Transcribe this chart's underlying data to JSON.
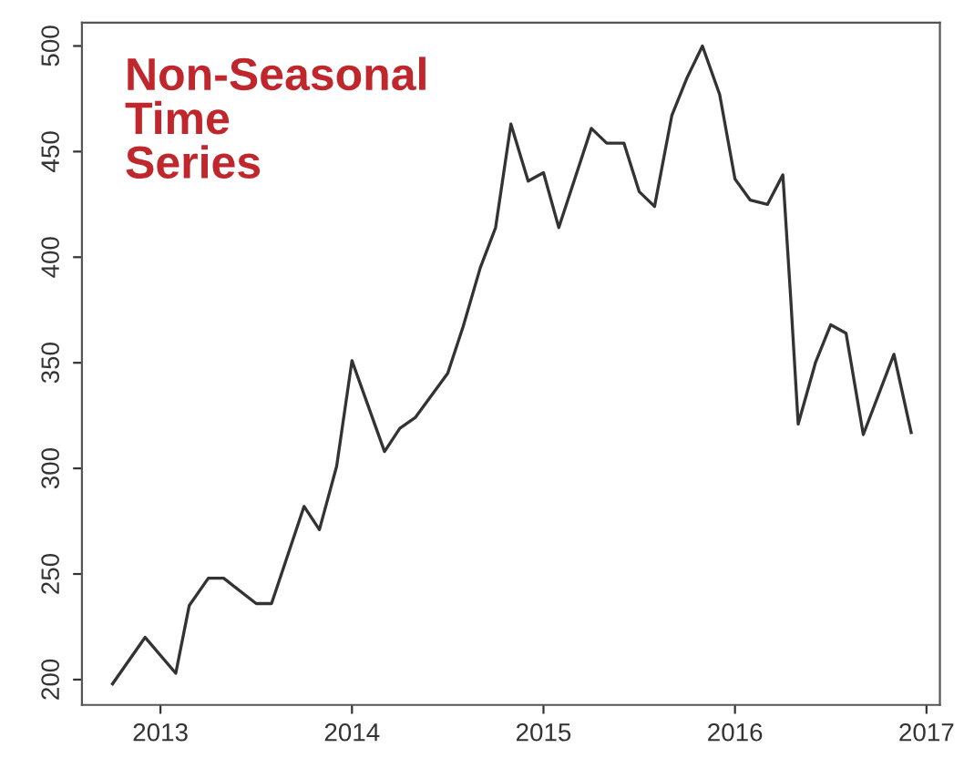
{
  "chart_data": {
    "type": "line",
    "title": "Non-Seasonal\nTime\nSeries",
    "x": [
      2012.75,
      2012.92,
      2013.08,
      2013.15,
      2013.25,
      2013.33,
      2013.5,
      2013.58,
      2013.75,
      2013.83,
      2013.92,
      2014.0,
      2014.17,
      2014.25,
      2014.33,
      2014.5,
      2014.58,
      2014.67,
      2014.75,
      2014.83,
      2014.92,
      2015.0,
      2015.08,
      2015.25,
      2015.33,
      2015.42,
      2015.5,
      2015.58,
      2015.67,
      2015.75,
      2015.83,
      2015.92,
      2016.0,
      2016.08,
      2016.17,
      2016.25,
      2016.29,
      2016.33,
      2016.42,
      2016.5,
      2016.58,
      2016.67,
      2016.83,
      2016.92
    ],
    "series": [
      {
        "color": "#333333",
        "values": [
          198,
          220,
          203,
          235,
          248,
          248,
          236,
          236,
          282,
          271,
          301,
          351,
          308,
          319,
          324,
          345,
          367,
          395,
          414,
          463,
          436,
          440,
          414,
          461,
          454,
          454,
          431,
          424,
          467,
          485,
          500,
          477,
          437,
          427,
          425,
          439,
          382,
          321,
          350,
          368,
          364,
          316,
          354,
          317
        ]
      }
    ],
    "xlim": [
      2012.59,
      2017.07
    ],
    "ylim": [
      188,
      511
    ],
    "xticks": [
      2013,
      2014,
      2015,
      2016,
      2017
    ],
    "yticks": [
      200,
      250,
      300,
      350,
      400,
      450,
      500
    ],
    "grid": false,
    "legend": false,
    "marker": "none",
    "line_style": "solid"
  }
}
